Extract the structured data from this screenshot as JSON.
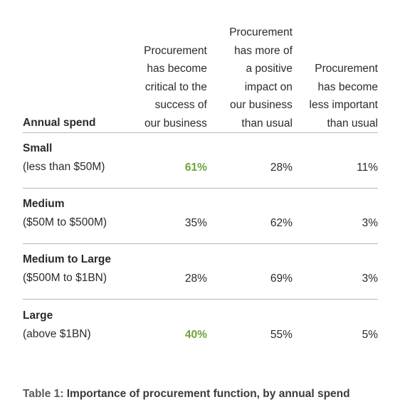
{
  "table": {
    "row_header_label": "Annual spend",
    "columns": [
      "Procurement\nhas become\ncritical to the\nsuccess of\nour business",
      "Procurement\nhas more of\na positive\nimpact on\nour business\nthan usual",
      "Procurement\nhas become\nless important\nthan usual"
    ],
    "rows": [
      {
        "name": "Small",
        "range": "(less than $50M)",
        "values": [
          "61%",
          "28%",
          "11%"
        ],
        "highlight": [
          true,
          false,
          false
        ]
      },
      {
        "name": "Medium",
        "range": "($50M to $500M)",
        "values": [
          "35%",
          "62%",
          "3%"
        ],
        "highlight": [
          false,
          false,
          false
        ]
      },
      {
        "name": "Medium to Large",
        "range": "($500M to $1BN)",
        "values": [
          "28%",
          "69%",
          "3%"
        ],
        "highlight": [
          false,
          false,
          false
        ]
      },
      {
        "name": "Large",
        "range": "(above $1BN)",
        "values": [
          "40%",
          "55%",
          "5%"
        ],
        "highlight": [
          true,
          false,
          false
        ]
      }
    ],
    "highlight_color": "#6ea43a"
  },
  "caption": {
    "prefix": "Table 1:",
    "text": " Importance of procurement function, by annual spend"
  }
}
